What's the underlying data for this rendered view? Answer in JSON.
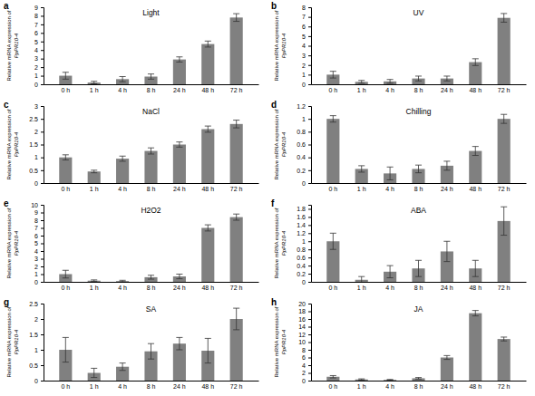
{
  "chart_data": [
    {
      "type": "bar",
      "annotation": "a",
      "title": "Light",
      "y_label": [
        "Relative mRNA expression of",
        "PpPR10-4"
      ],
      "categories": [
        "0 h",
        "1 h",
        "4 h",
        "8 h",
        "24 h",
        "48 h",
        "72 h"
      ],
      "values": [
        1.0,
        0.2,
        0.6,
        0.9,
        2.9,
        4.7,
        7.8
      ],
      "errors": [
        0.4,
        0.15,
        0.3,
        0.3,
        0.3,
        0.35,
        0.45
      ],
      "color": "#808080",
      "ylim": [
        0,
        9
      ],
      "yticks": [
        0,
        1,
        2,
        3,
        4,
        5,
        6,
        7,
        8,
        9
      ]
    },
    {
      "type": "bar",
      "annotation": "b",
      "title": "UV",
      "y_label": [
        "Relative mRNA expression of",
        "PpPR10-4"
      ],
      "categories": [
        "0 h",
        "1 h",
        "4 h",
        "8 h",
        "24 h",
        "48 h",
        "72 h"
      ],
      "values": [
        1.0,
        0.25,
        0.3,
        0.6,
        0.6,
        2.3,
        6.9
      ],
      "errors": [
        0.35,
        0.15,
        0.2,
        0.25,
        0.25,
        0.35,
        0.45
      ],
      "color": "#808080",
      "ylim": [
        0,
        8
      ],
      "yticks": [
        0,
        1,
        2,
        3,
        4,
        5,
        6,
        7,
        8
      ]
    },
    {
      "type": "bar",
      "annotation": "c",
      "title": "NaCl",
      "y_label": [
        "Relative mRNA expression of",
        "PpPR10-4"
      ],
      "categories": [
        "0 h",
        "1 h",
        "4 h",
        "8 h",
        "24 h",
        "48 h",
        "72 h"
      ],
      "values": [
        1.0,
        0.45,
        0.95,
        1.25,
        1.5,
        2.1,
        2.3
      ],
      "errors": [
        0.1,
        0.05,
        0.1,
        0.12,
        0.1,
        0.12,
        0.15
      ],
      "color": "#808080",
      "ylim": [
        0,
        3
      ],
      "yticks": [
        0,
        0.5,
        1,
        1.5,
        2,
        2.5,
        3
      ]
    },
    {
      "type": "bar",
      "annotation": "d",
      "title": "Chilling",
      "y_label": [
        "Relative mRNA expression of",
        "PpPR10-4"
      ],
      "categories": [
        "0 h",
        "1 h",
        "4 h",
        "8 h",
        "24 h",
        "48 h",
        "72 h"
      ],
      "values": [
        1.0,
        0.22,
        0.15,
        0.22,
        0.27,
        0.5,
        1.0
      ],
      "errors": [
        0.05,
        0.05,
        0.1,
        0.06,
        0.07,
        0.07,
        0.07
      ],
      "color": "#808080",
      "ylim": [
        0,
        1.2
      ],
      "yticks": [
        0,
        0.2,
        0.4,
        0.6,
        0.8,
        1,
        1.2
      ]
    },
    {
      "type": "bar",
      "annotation": "e",
      "title": "H2O2",
      "y_label": [
        "Relative mRNA expression of",
        "PpPR10-4"
      ],
      "categories": [
        "0 h",
        "1 h",
        "4 h",
        "8 h",
        "24 h",
        "48 h",
        "72 h"
      ],
      "values": [
        1.0,
        0.15,
        0.1,
        0.6,
        0.7,
        7.0,
        8.4
      ],
      "errors": [
        0.5,
        0.1,
        0.1,
        0.25,
        0.3,
        0.4,
        0.4
      ],
      "color": "#808080",
      "ylim": [
        0,
        10
      ],
      "yticks": [
        0,
        1,
        2,
        3,
        4,
        5,
        6,
        7,
        8,
        9,
        10
      ]
    },
    {
      "type": "bar",
      "annotation": "f",
      "title": "ABA",
      "y_label": [
        "Relative mRNA expression of",
        "PpPR10-4"
      ],
      "categories": [
        "0 h",
        "1 h",
        "4 h",
        "8 h",
        "24 h",
        "48 h",
        "72 h"
      ],
      "values": [
        1.0,
        0.05,
        0.25,
        0.33,
        0.75,
        0.33,
        1.5
      ],
      "errors": [
        0.2,
        0.08,
        0.15,
        0.2,
        0.25,
        0.2,
        0.35
      ],
      "color": "#808080",
      "ylim": [
        0,
        1.9
      ],
      "yticks": [
        0,
        0.2,
        0.4,
        0.6,
        0.8,
        1,
        1.2,
        1.4,
        1.6,
        1.8
      ]
    },
    {
      "type": "bar",
      "annotation": "g",
      "title": "SA",
      "y_label": [
        "Relative mRNA expression of",
        "PpPR10-4"
      ],
      "categories": [
        "0 h",
        "1 h",
        "4 h",
        "8 h",
        "24 h",
        "48 h",
        "72 h"
      ],
      "values": [
        1.0,
        0.25,
        0.45,
        0.95,
        1.2,
        0.97,
        2.0
      ],
      "errors": [
        0.4,
        0.15,
        0.12,
        0.25,
        0.2,
        0.4,
        0.35
      ],
      "color": "#808080",
      "ylim": [
        0,
        2.5
      ],
      "yticks": [
        0,
        0.5,
        1,
        1.5,
        2,
        2.5
      ]
    },
    {
      "type": "bar",
      "annotation": "h",
      "title": "JA",
      "y_label": [
        "Relative mRNA expression of",
        "PpPR10-4"
      ],
      "categories": [
        "0 h",
        "1 h",
        "4 h",
        "8 h",
        "24 h",
        "48 h",
        "72 h"
      ],
      "values": [
        1.0,
        0.3,
        0.2,
        0.6,
        6.0,
        17.5,
        10.8
      ],
      "errors": [
        0.3,
        0.15,
        0.1,
        0.2,
        0.5,
        0.7,
        0.5
      ],
      "color": "#808080",
      "ylim": [
        0,
        20
      ],
      "yticks": [
        0,
        2,
        4,
        6,
        8,
        10,
        12,
        14,
        16,
        18,
        20
      ]
    }
  ]
}
